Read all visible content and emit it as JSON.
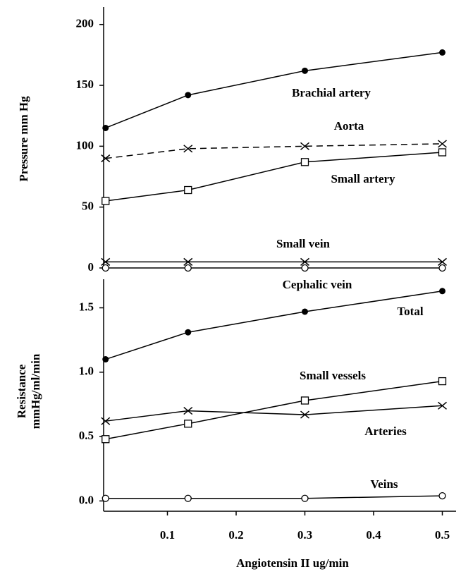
{
  "chart_data": [
    {
      "type": "line",
      "ylabel": "Pressure   mm Hg",
      "x": [
        0.01,
        0.13,
        0.3,
        0.5
      ],
      "xlim": [
        0,
        0.52
      ],
      "ylim": [
        0,
        212
      ],
      "yticks": [
        0,
        50,
        100,
        150,
        200
      ],
      "series": [
        {
          "name": "Brachial artery",
          "color": "#000",
          "marker": "dot",
          "dash": false,
          "values": [
            115,
            142,
            162,
            177
          ]
        },
        {
          "name": "Aorta",
          "color": "#000",
          "marker": "x",
          "dash": true,
          "values": [
            90,
            98,
            100,
            102
          ]
        },
        {
          "name": "Small artery",
          "color": "#000",
          "marker": "square",
          "dash": false,
          "values": [
            55,
            64,
            87,
            95
          ]
        },
        {
          "name": "Small vein",
          "color": "#000",
          "marker": "x",
          "dash": false,
          "values": [
            5,
            5,
            5,
            5
          ]
        },
        {
          "name": "Cephalic vein",
          "color": "#000",
          "marker": "circle",
          "dash": false,
          "values": [
            0,
            0,
            0,
            0
          ]
        }
      ]
    },
    {
      "type": "line",
      "ylabel": [
        "Resistance",
        "mmHg/ml/min"
      ],
      "xlabel": "Angiotensin II  ug/min",
      "x": [
        0.01,
        0.13,
        0.3,
        0.5
      ],
      "xlim": [
        0,
        0.52
      ],
      "xticks": [
        0.1,
        0.2,
        0.3,
        0.4,
        0.5
      ],
      "ylim": [
        -0.08,
        1.7
      ],
      "yticks": [
        {
          "value": 0,
          "label": "0.0"
        },
        0.5,
        {
          "value": 1,
          "label": "1.0"
        },
        1.5
      ],
      "series": [
        {
          "name": "Total",
          "color": "#000",
          "marker": "dot",
          "dash": false,
          "values": [
            1.1,
            1.31,
            1.47,
            1.63
          ]
        },
        {
          "name": "Small vessels",
          "color": "#000",
          "marker": "square",
          "dash": false,
          "values": [
            0.48,
            0.6,
            0.78,
            0.93
          ]
        },
        {
          "name": "Arteries",
          "color": "#000",
          "marker": "x",
          "dash": false,
          "values": [
            0.62,
            0.7,
            0.67,
            0.74
          ]
        },
        {
          "name": "Veins",
          "color": "#000",
          "marker": "circle",
          "dash": false,
          "values": [
            0.02,
            0.02,
            0.02,
            0.04
          ]
        }
      ]
    }
  ]
}
